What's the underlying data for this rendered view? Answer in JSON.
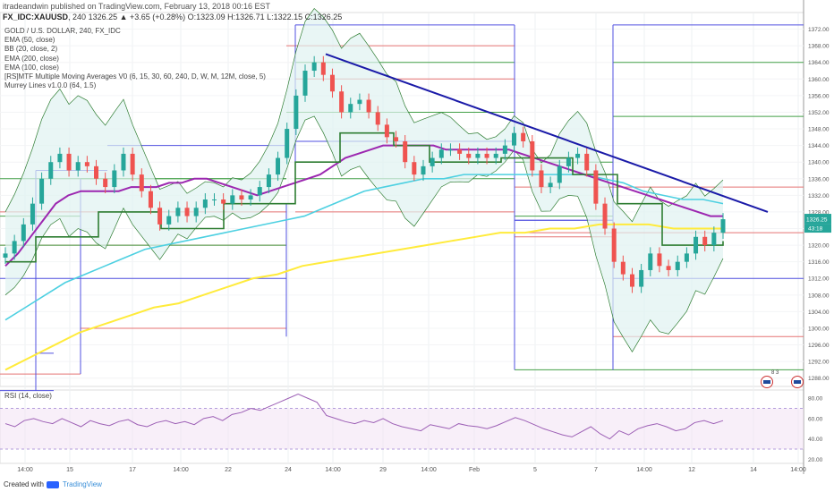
{
  "header": {
    "publisher_line": "itradeandwin published on TradingView.com, February 13, 2018 00:16 EST",
    "symbol": "FX_IDC:XAUUSD",
    "interval": "240",
    "change": "1326.25 ▲ +3.65 (+0.28%)",
    "ohlc": "O:1323.09 H:1326.71 L:1322.15 C:1326.25"
  },
  "legend": [
    "GOLD / U.S. DOLLAR, 240, FX_IDC",
    "EMA (50, close)",
    "BB (20, close, 2)",
    "EMA (200, close)",
    "EMA (100, close)",
    "[RS]MTF Multiple Moving Averages V0 (6, 15, 30, 60, 240, D, W, M, 12M, close, 5)",
    "Murrey Lines v1.0.0 (64, 1.5)"
  ],
  "rsi_label": "RSI (14, close)",
  "footer": {
    "created_with": "Created with",
    "brand": "TradingView"
  },
  "colors": {
    "up": "#26a69a",
    "down": "#ef5350",
    "ema50": "#9c27b0",
    "ema100": "#4dd0e1",
    "ema200": "#ffeb3b",
    "bb": "#2e7d32",
    "bb_fill": "#e0f2f1",
    "trend": "#1a1aa8",
    "murrey_blue": "#5050e0",
    "murrey_red": "#e57373",
    "murrey_green": "#43a047",
    "mtf_green": "#2e7d32",
    "mtf_brown": "#8d4a3a",
    "rsi": "#9c5fb5",
    "rsi_band": "#f3e5f5"
  },
  "flags": [
    {
      "label": "8 3"
    }
  ],
  "chart_data": {
    "type": "line",
    "title": "GOLD / U.S. DOLLAR, 240, FX_IDC",
    "symbol": "FX_IDC:XAUUSD",
    "y_ticks": [
      1372,
      1368,
      1364,
      1360,
      1356,
      1352,
      1348,
      1344,
      1340,
      1336,
      1332,
      1328,
      1324,
      1320,
      1316,
      1312,
      1308,
      1304,
      1300,
      1296,
      1292,
      1288
    ],
    "ylim": [
      1286,
      1376
    ],
    "x_ticks": [
      "14:00",
      "15",
      "17",
      "14:00",
      "22",
      "24",
      "14:00",
      "29",
      "14:00",
      "Feb",
      "5",
      "7",
      "14:00",
      "12",
      "14",
      "14:00"
    ],
    "last_price_label": "1326.25",
    "countdown_label": "43:18",
    "series": [
      {
        "name": "GOLD / U.S. DOLLAR",
        "type": "candlestick",
        "close": [
          1318,
          1321,
          1325,
          1330,
          1336,
          1340,
          1342,
          1338,
          1340,
          1339,
          1336,
          1334,
          1338,
          1342,
          1337,
          1333,
          1329,
          1325,
          1327,
          1329,
          1327,
          1329,
          1331,
          1331,
          1330,
          1332,
          1331,
          1332,
          1334,
          1337,
          1341,
          1348,
          1356,
          1362,
          1364,
          1361,
          1357,
          1352,
          1354,
          1355,
          1352,
          1349,
          1346,
          1345,
          1340,
          1337,
          1339,
          1341,
          1343,
          1343,
          1342,
          1341,
          1342,
          1341,
          1342,
          1344,
          1347,
          1345,
          1338,
          1334,
          1335,
          1339,
          1341,
          1342,
          1338,
          1330,
          1324,
          1316,
          1313,
          1310,
          1314,
          1318,
          1315,
          1314,
          1316,
          1318,
          1322,
          1320,
          1323,
          1326.25
        ]
      },
      {
        "name": "EMA (50, close)",
        "values": [
          1315,
          1318,
          1322,
          1326,
          1330,
          1332,
          1333,
          1333,
          1333,
          1333,
          1334,
          1334,
          1334,
          1335,
          1335,
          1336,
          1336,
          1335,
          1334,
          1333,
          1332,
          1333,
          1334,
          1335,
          1336,
          1337,
          1339,
          1341,
          1342,
          1343,
          1344,
          1344,
          1344,
          1344,
          1344,
          1343,
          1343,
          1343,
          1343,
          1343,
          1343,
          1342,
          1341,
          1340,
          1339,
          1338,
          1337,
          1336,
          1335,
          1334,
          1333,
          1332,
          1331,
          1330,
          1329,
          1328,
          1327,
          1327
        ]
      },
      {
        "name": "EMA (100, close)",
        "values": [
          1302,
          1305,
          1308,
          1311,
          1313,
          1315,
          1317,
          1319,
          1320,
          1321,
          1322,
          1323,
          1324,
          1325,
          1326,
          1327,
          1329,
          1331,
          1333,
          1334,
          1335,
          1336,
          1336,
          1337,
          1337,
          1337,
          1337,
          1337,
          1337,
          1337,
          1336,
          1335,
          1333,
          1332,
          1331,
          1331,
          1330
        ]
      },
      {
        "name": "EMA (200, close)",
        "values": [
          1290,
          1293,
          1296,
          1299,
          1301,
          1303,
          1305,
          1306,
          1308,
          1310,
          1312,
          1313,
          1315,
          1316,
          1317,
          1318,
          1319,
          1320,
          1321,
          1322,
          1323,
          1323,
          1324,
          1324,
          1325,
          1325,
          1325,
          1324,
          1324,
          1324
        ]
      },
      {
        "name": "RSI (14, close)",
        "ylim": [
          16,
          88
        ],
        "y_ticks": [
          80,
          60,
          40,
          20
        ],
        "values": [
          55,
          52,
          58,
          60,
          57,
          55,
          60,
          56,
          52,
          58,
          55,
          53,
          57,
          59,
          54,
          52,
          56,
          58,
          55,
          57,
          54,
          60,
          62,
          58,
          64,
          66,
          70,
          68,
          72,
          76,
          80,
          84,
          80,
          76,
          63,
          60,
          57,
          55,
          58,
          56,
          60,
          55,
          52,
          50,
          48,
          54,
          52,
          50,
          55,
          53,
          52,
          50,
          53,
          57,
          61,
          58,
          54,
          50,
          47,
          44,
          42,
          47,
          52,
          45,
          40,
          48,
          44,
          50,
          53,
          55,
          52,
          48,
          50,
          56,
          58,
          55,
          58
        ]
      }
    ]
  }
}
